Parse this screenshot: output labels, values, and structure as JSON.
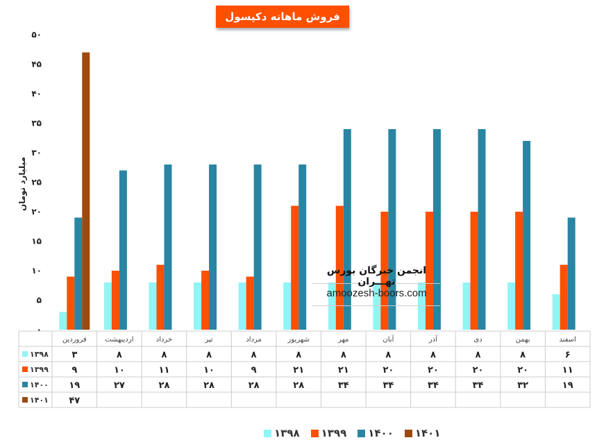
{
  "title": "فروش ماهانه دکپسول",
  "ylabel": "میلیارد تومان",
  "watermark": {
    "title": "انجمن خبرگان بورس تهـــران",
    "url": "amoozesh-boors.com"
  },
  "colors": {
    "series_1398": "#8ff5f5",
    "series_1399": "#ff4f00",
    "series_1400": "#2a85a3",
    "series_1401": "#9e4a0d",
    "title_bg": "#ff4f00",
    "grid": "#cccccc"
  },
  "chart_data": {
    "type": "bar",
    "title": "فروش ماهانه دکپسول",
    "ylabel": "میلیارد تومان",
    "ylim": [
      0,
      50
    ],
    "yticks": [
      "۰",
      "۵",
      "۱۰",
      "۱۵",
      "۲۰",
      "۲۵",
      "۳۰",
      "۳۵",
      "۴۰",
      "۴۵",
      "۵۰"
    ],
    "ytick_values": [
      0,
      5,
      10,
      15,
      20,
      25,
      30,
      35,
      40,
      45,
      50
    ],
    "categories": [
      "فروردین",
      "اردیبهشت",
      "خرداد",
      "تیر",
      "مرداد",
      "شهریور",
      "مهر",
      "آبان",
      "آذر",
      "دی",
      "بهمن",
      "اسفند"
    ],
    "series": [
      {
        "name": "۱۳۹۸",
        "values": [
          3,
          8,
          8,
          8,
          8,
          8,
          8,
          8,
          8,
          8,
          8,
          6
        ],
        "labels": [
          "۳",
          "۸",
          "۸",
          "۸",
          "۸",
          "۸",
          "۸",
          "۸",
          "۸",
          "۸",
          "۸",
          "۶"
        ]
      },
      {
        "name": "۱۳۹۹",
        "values": [
          9,
          10,
          11,
          10,
          9,
          21,
          21,
          20,
          20,
          20,
          20,
          11
        ],
        "labels": [
          "۹",
          "۱۰",
          "۱۱",
          "۱۰",
          "۹",
          "۲۱",
          "۲۱",
          "۲۰",
          "۲۰",
          "۲۰",
          "۲۰",
          "۱۱"
        ]
      },
      {
        "name": "۱۴۰۰",
        "values": [
          19,
          27,
          28,
          28,
          28,
          28,
          34,
          34,
          34,
          34,
          32,
          19
        ],
        "labels": [
          "۱۹",
          "۲۷",
          "۲۸",
          "۲۸",
          "۲۸",
          "۲۸",
          "۳۴",
          "۳۴",
          "۳۴",
          "۳۴",
          "۳۲",
          "۱۹"
        ]
      },
      {
        "name": "۱۴۰۱",
        "values": [
          47,
          null,
          null,
          null,
          null,
          null,
          null,
          null,
          null,
          null,
          null,
          null
        ],
        "labels": [
          "۴۷",
          "",
          "",
          "",
          "",
          "",
          "",
          "",
          "",
          "",
          "",
          ""
        ]
      }
    ],
    "legend": "bottom",
    "data_table": true,
    "grid": false
  }
}
